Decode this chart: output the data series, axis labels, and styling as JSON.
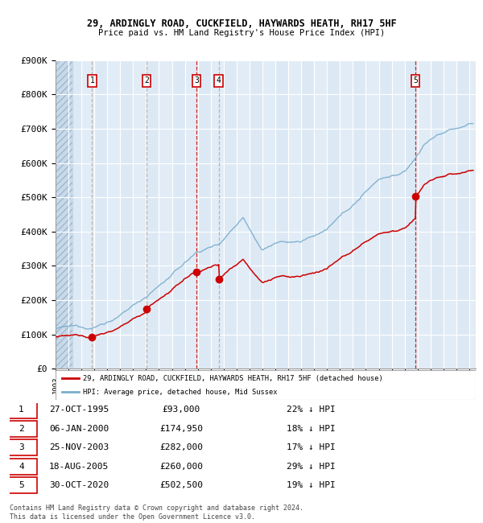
{
  "title_line1": "29, ARDINGLY ROAD, CUCKFIELD, HAYWARDS HEATH, RH17 5HF",
  "title_line2": "Price paid vs. HM Land Registry's House Price Index (HPI)",
  "ylim": [
    0,
    900000
  ],
  "yticks": [
    0,
    100000,
    200000,
    300000,
    400000,
    500000,
    600000,
    700000,
    800000,
    900000
  ],
  "ytick_labels": [
    "£0",
    "£100K",
    "£200K",
    "£300K",
    "£400K",
    "£500K",
    "£600K",
    "£700K",
    "£800K",
    "£900K"
  ],
  "x_start_year": 1993,
  "x_end_year": 2025,
  "background_color": "#dce9f5",
  "grid_color": "#ffffff",
  "red_line_color": "#cc0000",
  "blue_line_color": "#7aadcc",
  "sale_points": [
    {
      "num": 1,
      "date": "27-OCT-1995",
      "price": 93000,
      "year": 1995.83,
      "pct": "22%",
      "dir": "↓",
      "vline_style": "dashed_grey"
    },
    {
      "num": 2,
      "date": "06-JAN-2000",
      "price": 174950,
      "year": 2000.03,
      "pct": "18%",
      "dir": "↓",
      "vline_style": "dashed_grey"
    },
    {
      "num": 3,
      "date": "25-NOV-2003",
      "price": 282000,
      "year": 2003.9,
      "pct": "17%",
      "dir": "↓",
      "vline_style": "dashed_red"
    },
    {
      "num": 4,
      "date": "18-AUG-2005",
      "price": 260000,
      "year": 2005.63,
      "pct": "29%",
      "dir": "↓",
      "vline_style": "dashed_grey"
    },
    {
      "num": 5,
      "date": "30-OCT-2020",
      "price": 502500,
      "year": 2020.83,
      "pct": "19%",
      "dir": "↓",
      "vline_style": "dashed_red"
    }
  ],
  "legend_red": "29, ARDINGLY ROAD, CUCKFIELD, HAYWARDS HEATH, RH17 5HF (detached house)",
  "legend_blue": "HPI: Average price, detached house, Mid Sussex",
  "footer": "Contains HM Land Registry data © Crown copyright and database right 2024.\nThis data is licensed under the Open Government Licence v3.0.",
  "table_rows": [
    [
      "1",
      "27-OCT-1995",
      "£93,000",
      "22% ↓ HPI"
    ],
    [
      "2",
      "06-JAN-2000",
      "£174,950",
      "18% ↓ HPI"
    ],
    [
      "3",
      "25-NOV-2003",
      "£282,000",
      "17% ↓ HPI"
    ],
    [
      "4",
      "18-AUG-2005",
      "£260,000",
      "29% ↓ HPI"
    ],
    [
      "5",
      "30-OCT-2020",
      "£502,500",
      "19% ↓ HPI"
    ]
  ]
}
